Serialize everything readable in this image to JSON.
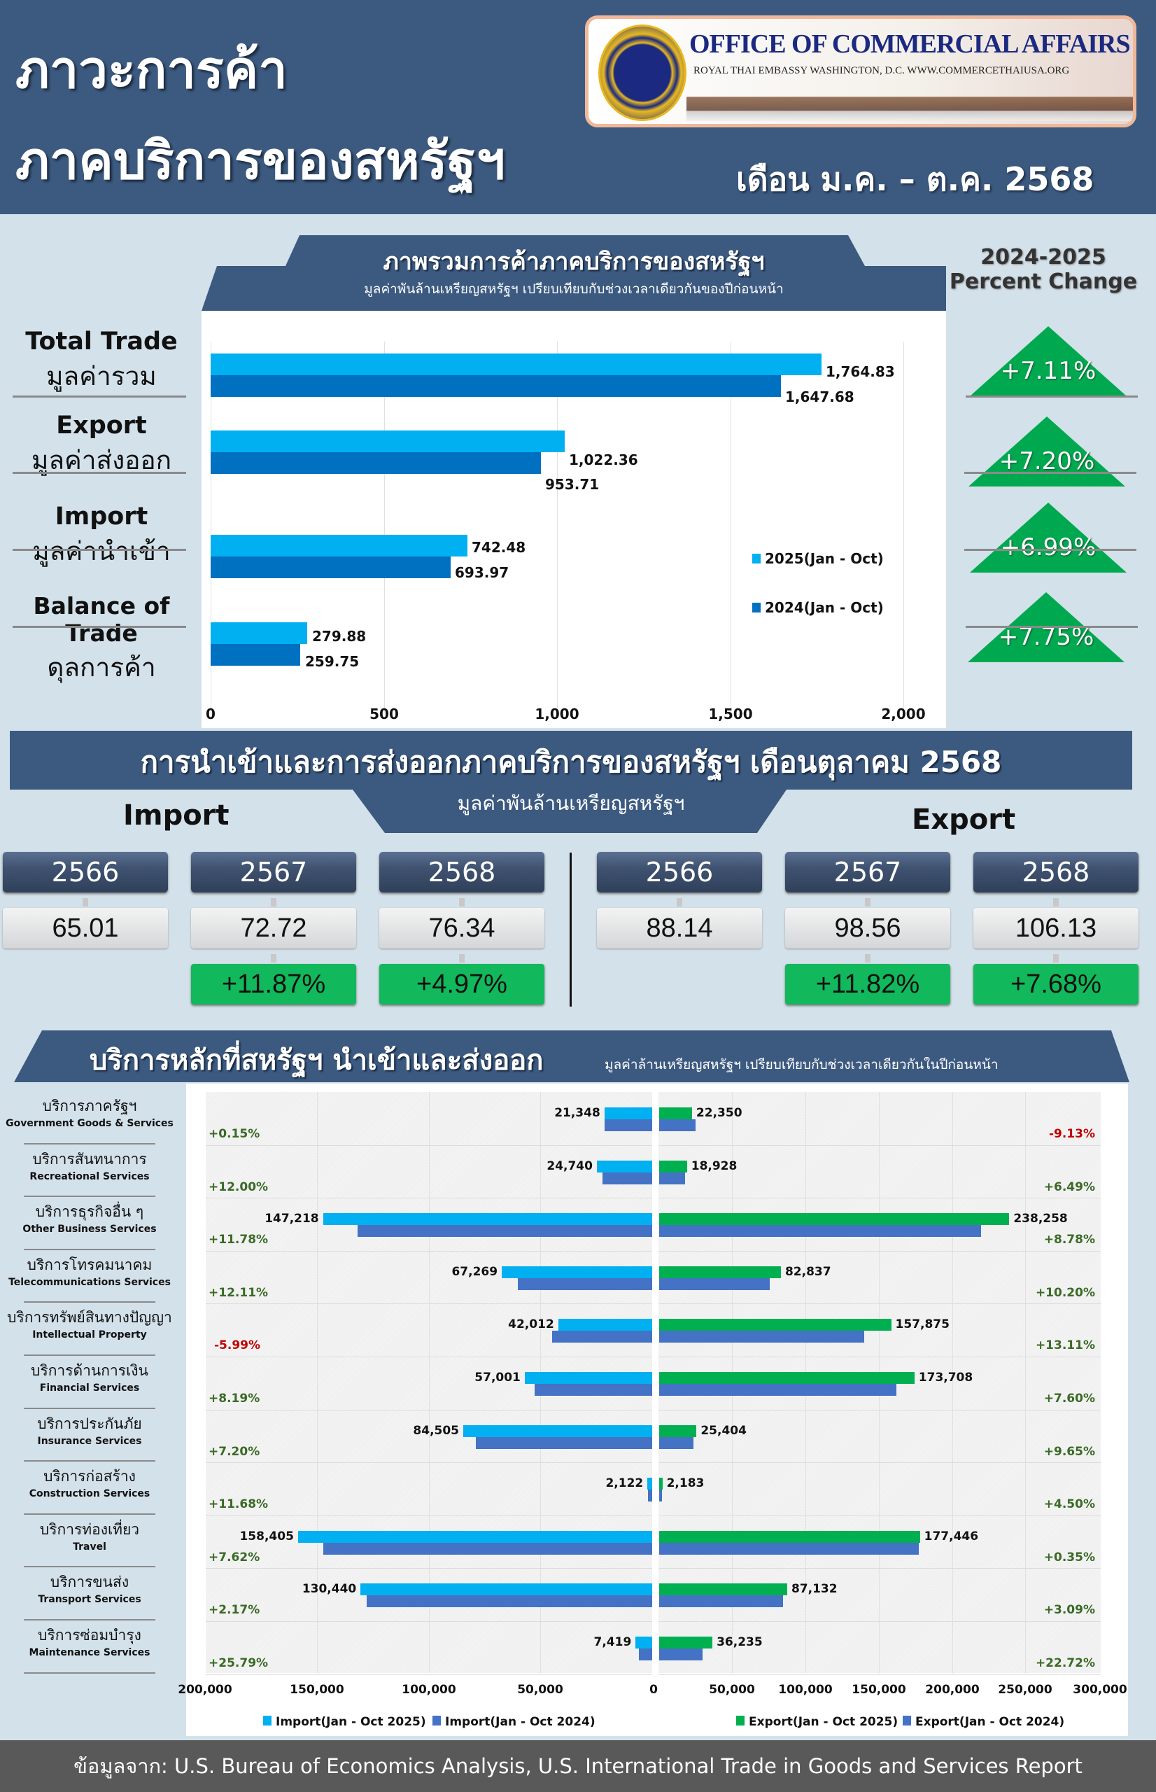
{
  "header": {
    "title_line1": "ภาวะการค้า",
    "title_line2": "ภาคบริการของสหรัฐฯ",
    "period": "เดือน ม.ค. – ต.ค. 2568",
    "logo": {
      "title": "OFFICE OF COMMERCIAL AFFAIRS",
      "subtitle": "ROYAL THAI EMBASSY WASHINGTON, D.C.    WWW.COMMERCETHAIUSA.ORG"
    }
  },
  "overview": {
    "banner_title": "ภาพรวมการค้าภาคบริการของสหรัฐฯ",
    "banner_subtitle": "มูลค่าพันล้านเหรียญสหรัฐฯ เปรียบเทียบกับช่วงเวลาเดียวกันของปีก่อนหน้า",
    "pct_header_line1": "2024-2025",
    "pct_header_line2": "Percent Change",
    "rows": [
      {
        "en": "Total Trade",
        "th": "มูลค่ารวม",
        "v2025": "1,764.83",
        "v2024": "1,647.68",
        "pct": "+7.11%"
      },
      {
        "en": "Export",
        "th": "มูลค่าส่งออก",
        "v2025": "1,022.36",
        "v2024": "953.71",
        "pct": "+7.20%"
      },
      {
        "en": "Import",
        "th": "มูลค่านำเข้า",
        "v2025": "742.48",
        "v2024": "693.97",
        "pct": "+6.99%"
      },
      {
        "en": "Balance of Trade",
        "th": "ดุลการค้า",
        "v2025": "279.88",
        "v2024": "259.75",
        "pct": "+7.75%"
      }
    ],
    "ticks": [
      "0",
      "500",
      "1,000",
      "1,500",
      "2,000"
    ],
    "legend": [
      "2025(Jan - Oct)",
      "2024(Jan - Oct)"
    ]
  },
  "monthly": {
    "banner_title": "การนำเข้าและการส่งออกภาคบริการของสหรัฐฯ เดือนตุลาคม 2568",
    "banner_subtitle": "มูลค่าพันล้านเหรียญสหรัฐฯ",
    "import": {
      "label": "Import",
      "years": [
        "2566",
        "2567",
        "2568"
      ],
      "values": [
        "65.01",
        "72.72",
        "76.34"
      ],
      "changes": [
        "",
        "+11.87%",
        "+4.97%"
      ]
    },
    "export": {
      "label": "Export",
      "years": [
        "2566",
        "2567",
        "2568"
      ],
      "values": [
        "88.14",
        "98.56",
        "106.13"
      ],
      "changes": [
        "",
        "+11.82%",
        "+7.68%"
      ]
    }
  },
  "services": {
    "banner_title": "บริการหลักที่สหรัฐฯ นำเข้าและส่งออก",
    "banner_subtitle": "มูลค่าล้านเหรียญสหรัฐฯ เปรียบเทียบกับช่วงเวลาเดียวกันในปีก่อนหน้า",
    "import_ticks": [
      "200,000",
      "150,000",
      "100,000",
      "50,000",
      "0"
    ],
    "export_ticks": [
      "0",
      "50,000",
      "100,000",
      "150,000",
      "200,000",
      "250,000",
      "300,000"
    ],
    "legend": [
      "Import(Jan - Oct 2025)",
      "Import(Jan - Oct 2024)",
      "Export(Jan - Oct 2025)",
      "Export(Jan - Oct 2024)"
    ],
    "rows": [
      {
        "th": "บริการภาครัฐฯ",
        "en": "Government Goods & Services",
        "imp": "21,348",
        "exp": "22,350",
        "imp_pct": "+0.15%",
        "exp_pct": "-9.13%"
      },
      {
        "th": "บริการสันทนาการ",
        "en": "Recreational Services",
        "imp": "24,740",
        "exp": "18,928",
        "imp_pct": "+12.00%",
        "exp_pct": "+6.49%"
      },
      {
        "th": "บริการธุรกิจอื่น ๆ",
        "en": "Other Business Services",
        "imp": "147,218",
        "exp": "238,258",
        "imp_pct": "+11.78%",
        "exp_pct": "+8.78%"
      },
      {
        "th": "บริการโทรคมนาคม",
        "en": "Telecommunications Services",
        "imp": "67,269",
        "exp": "82,837",
        "imp_pct": "+12.11%",
        "exp_pct": "+10.20%"
      },
      {
        "th": "บริการทรัพย์สินทางปัญญา",
        "en": "Intellectual Property",
        "imp": "42,012",
        "exp": "157,875",
        "imp_pct": "-5.99%",
        "exp_pct": "+13.11%"
      },
      {
        "th": "บริการด้านการเงิน",
        "en": "Financial Services",
        "imp": "57,001",
        "exp": "173,708",
        "imp_pct": "+8.19%",
        "exp_pct": "+7.60%"
      },
      {
        "th": "บริการประกันภัย",
        "en": "Insurance Services",
        "imp": "84,505",
        "exp": "25,404",
        "imp_pct": "+7.20%",
        "exp_pct": "+9.65%"
      },
      {
        "th": "บริการก่อสร้าง",
        "en": "Construction Services",
        "imp": "2,122",
        "exp": "2,183",
        "imp_pct": "+11.68%",
        "exp_pct": "+4.50%"
      },
      {
        "th": "บริการท่องเที่ยว",
        "en": "Travel",
        "imp": "158,405",
        "exp": "177,446",
        "imp_pct": "+7.62%",
        "exp_pct": "+0.35%"
      },
      {
        "th": "บริการขนส่ง",
        "en": "Transport Services",
        "imp": "130,440",
        "exp": "87,132",
        "imp_pct": "+2.17%",
        "exp_pct": "+3.09%"
      },
      {
        "th": "บริการซ่อมบำรุง",
        "en": "Maintenance Services",
        "imp": "7,419",
        "exp": "36,235",
        "imp_pct": "+25.79%",
        "exp_pct": "+22.72%"
      }
    ]
  },
  "footer": {
    "source": "ข้อมูลจาก: U.S. Bureau of Economics Analysis, U.S. International Trade in Goods and Services Report"
  },
  "colors": {
    "navy": "#3c5a80",
    "bar_2025": "#00b0f0",
    "bar_2024": "#0070c0",
    "svc_2024": "#4472c4",
    "export_2025": "#00b050",
    "positive": "#00a950",
    "negative": "#c00000"
  },
  "chart_data": [
    {
      "type": "bar",
      "title": "ภาพรวมการค้าภาคบริการของสหรัฐฯ",
      "subtitle": "มูลค่าพันล้านเหรียญสหรัฐฯ เปรียบเทียบกับช่วงเวลาเดียวกันของปีก่อนหน้า",
      "orientation": "horizontal",
      "categories": [
        "Total Trade",
        "Export",
        "Import",
        "Balance of Trade"
      ],
      "series": [
        {
          "name": "2025(Jan - Oct)",
          "values": [
            1764.83,
            1022.36,
            742.48,
            279.88
          ]
        },
        {
          "name": "2024(Jan - Oct)",
          "values": [
            1647.68,
            953.71,
            693.97,
            259.75
          ]
        }
      ],
      "percent_change": [
        7.11,
        7.2,
        6.99,
        7.75
      ],
      "xlabel": "",
      "ylabel": "",
      "xlim": [
        0,
        2000
      ],
      "ticks": [
        0,
        500,
        1000,
        1500,
        2000
      ],
      "grid": true,
      "legend_position": "right"
    },
    {
      "type": "table",
      "title": "การนำเข้าและการส่งออกภาคบริการของสหรัฐฯ เดือนตุลาคม 2568",
      "unit": "มูลค่าพันล้านเหรียญสหรัฐฯ",
      "categories": [
        "2566",
        "2567",
        "2568"
      ],
      "series": [
        {
          "name": "Import",
          "values": [
            65.01,
            72.72,
            76.34
          ],
          "pct_change": [
            null,
            11.87,
            4.97
          ]
        },
        {
          "name": "Export",
          "values": [
            88.14,
            98.56,
            106.13
          ],
          "pct_change": [
            null,
            11.82,
            7.68
          ]
        }
      ]
    },
    {
      "type": "bar",
      "title": "บริการหลักที่สหรัฐฯ นำเข้าและส่งออก",
      "subtitle": "มูลค่าล้านเหรียญสหรัฐฯ เปรียบเทียบกับช่วงเวลาเดียวกันในปีก่อนหน้า",
      "orientation": "horizontal-butterfly",
      "categories": [
        "Government Goods & Services",
        "Recreational Services",
        "Other Business Services",
        "Telecommunications Services",
        "Intellectual Property",
        "Financial Services",
        "Insurance Services",
        "Construction Services",
        "Travel",
        "Transport Services",
        "Maintenance Services"
      ],
      "series": [
        {
          "name": "Import(Jan - Oct 2025)",
          "values": [
            21348,
            24740,
            147218,
            67269,
            42012,
            57001,
            84505,
            2122,
            158405,
            130440,
            7419
          ]
        },
        {
          "name": "Import(Jan - Oct 2024)",
          "values": [
            21316,
            22089,
            131703,
            60003,
            44689,
            52686,
            78829,
            1900,
            147187,
            127670,
            5898
          ]
        },
        {
          "name": "Export(Jan - Oct 2025)",
          "values": [
            22350,
            18928,
            238258,
            82837,
            157875,
            173708,
            25404,
            2183,
            177446,
            87132,
            36235
          ]
        },
        {
          "name": "Export(Jan - Oct 2024)",
          "values": [
            24596,
            17774,
            219027,
            75170,
            139577,
            161439,
            23168,
            2089,
            176827,
            84520,
            29528
          ]
        }
      ],
      "import_pct_change": [
        0.15,
        12.0,
        11.78,
        12.11,
        -5.99,
        8.19,
        7.2,
        11.68,
        7.62,
        2.17,
        25.79
      ],
      "export_pct_change": [
        -9.13,
        6.49,
        8.78,
        10.2,
        13.11,
        7.6,
        9.65,
        4.5,
        0.35,
        3.09,
        22.72
      ],
      "import_xlim": [
        200000,
        0
      ],
      "export_xlim": [
        0,
        300000
      ],
      "grid": true,
      "legend_position": "bottom"
    }
  ]
}
